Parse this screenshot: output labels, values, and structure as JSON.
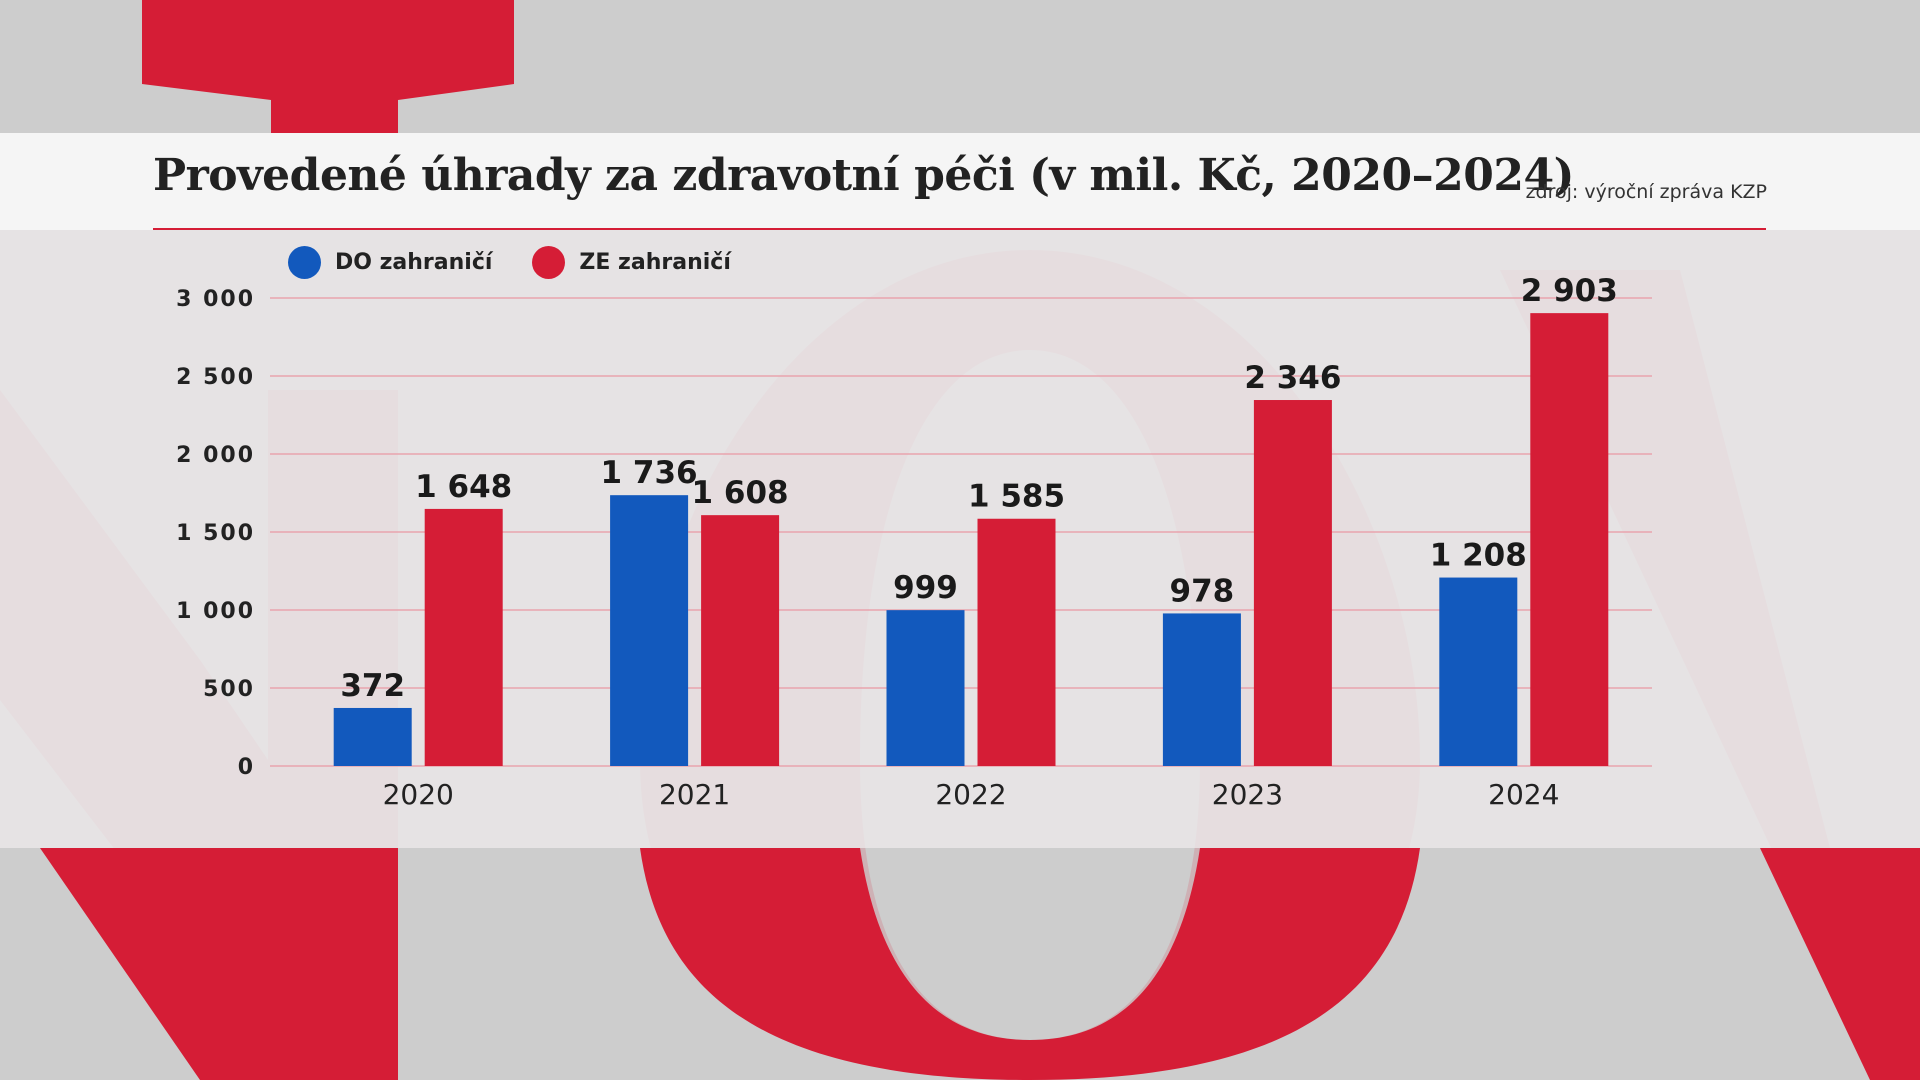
{
  "header": {
    "title": "Provedené úhrady za zdravotní péči (v mil. Kč, 2020–2024)",
    "source": "zdroj: výroční zpráva KZP"
  },
  "colors": {
    "series_do": "#1259bd",
    "series_ze": "#d51d36",
    "accent": "#d51d36",
    "background": "#cdcdcd"
  },
  "chart_data": {
    "type": "bar",
    "categories": [
      "2020",
      "2021",
      "2022",
      "2023",
      "2024"
    ],
    "series": [
      {
        "name": "DO zahraničí",
        "values": [
          372,
          1736,
          999,
          978,
          1208
        ],
        "labels": [
          "372",
          "1 736",
          "999",
          "978",
          "1 208"
        ],
        "color": "#1259bd"
      },
      {
        "name": "ZE zahraničí",
        "values": [
          1648,
          1608,
          1585,
          2346,
          2903
        ],
        "labels": [
          "1 648",
          "1 608",
          "1 585",
          "2 346",
          "2 903"
        ],
        "color": "#d51d36"
      }
    ],
    "yticks": [
      0,
      500,
      1000,
      1500,
      2000,
      2500,
      3000
    ],
    "ytick_labels": [
      "0",
      "500",
      "1 000",
      "1 500",
      "2 000",
      "2 500",
      "3 000"
    ],
    "ylim": [
      0,
      3000
    ],
    "grid": true,
    "legend_position": "top-left"
  }
}
